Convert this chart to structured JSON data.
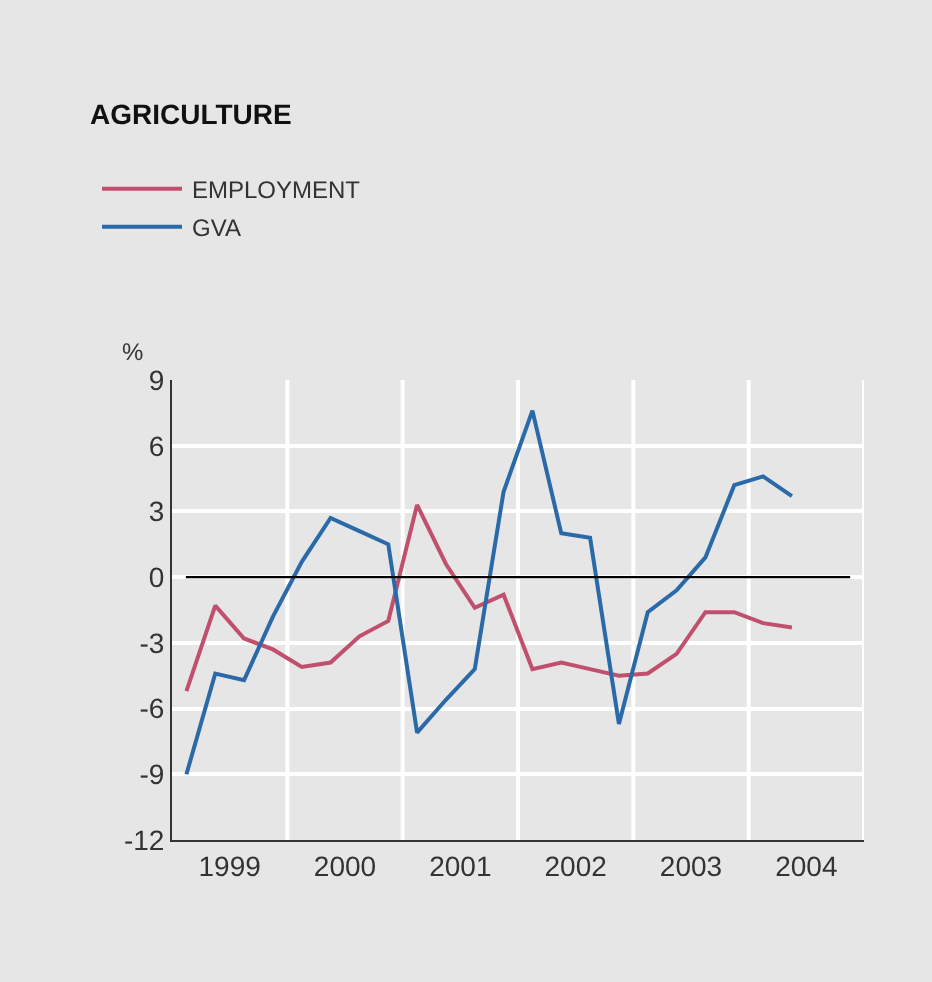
{
  "chart_data": {
    "type": "line",
    "title": "AGRICULTURE",
    "ylabel": "%",
    "x": [
      1999.125,
      1999.375,
      1999.625,
      1999.875,
      2000.125,
      2000.375,
      2000.625,
      2000.875,
      2001.125,
      2001.375,
      2001.625,
      2001.875,
      2002.125,
      2002.375,
      2002.625,
      2002.875,
      2003.125,
      2003.375,
      2003.625,
      2003.875,
      2004.125,
      2004.375
    ],
    "series": [
      {
        "name": "EMPLOYMENT",
        "color": "#c0506e",
        "values": [
          -5.2,
          -1.3,
          -2.8,
          -3.3,
          -4.1,
          -3.9,
          -2.7,
          -2.0,
          3.3,
          0.6,
          -1.4,
          -0.8,
          -4.2,
          -3.9,
          -4.2,
          -4.5,
          -4.4,
          -3.5,
          -1.6,
          -1.6,
          -2.1,
          -2.3
        ]
      },
      {
        "name": "GVA",
        "color": "#2a6aa8",
        "values": [
          -9.0,
          -4.4,
          -4.7,
          -1.8,
          0.7,
          2.7,
          2.1,
          1.5,
          -7.1,
          -5.6,
          -4.2,
          3.9,
          7.6,
          2.0,
          1.8,
          -6.7,
          -1.6,
          -0.6,
          0.9,
          4.2,
          4.6,
          3.7
        ]
      }
    ],
    "xlim": [
      1999,
      2005
    ],
    "xticks": [
      {
        "value": 1999.5,
        "label": "1999"
      },
      {
        "value": 2000,
        "label": null
      },
      {
        "value": 2000.5,
        "label": "2000"
      },
      {
        "value": 2001,
        "label": null
      },
      {
        "value": 2001.5,
        "label": "2001"
      },
      {
        "value": 2002,
        "label": null
      },
      {
        "value": 2002.5,
        "label": "2002"
      },
      {
        "value": 2003,
        "label": null
      },
      {
        "value": 2003.5,
        "label": "2003"
      },
      {
        "value": 2004,
        "label": null
      },
      {
        "value": 2004.5,
        "label": "2004"
      },
      {
        "value": 2005,
        "label": null
      }
    ],
    "ylim": [
      -12,
      9
    ],
    "yticks": [
      -12,
      -9,
      -6,
      -3,
      0,
      3,
      6,
      9
    ],
    "ref_lines": [
      {
        "axis": "y",
        "value": 0,
        "color": "#000000"
      }
    ],
    "grid": true,
    "legend": "top left",
    "marker": "none",
    "line_style": "solid"
  }
}
